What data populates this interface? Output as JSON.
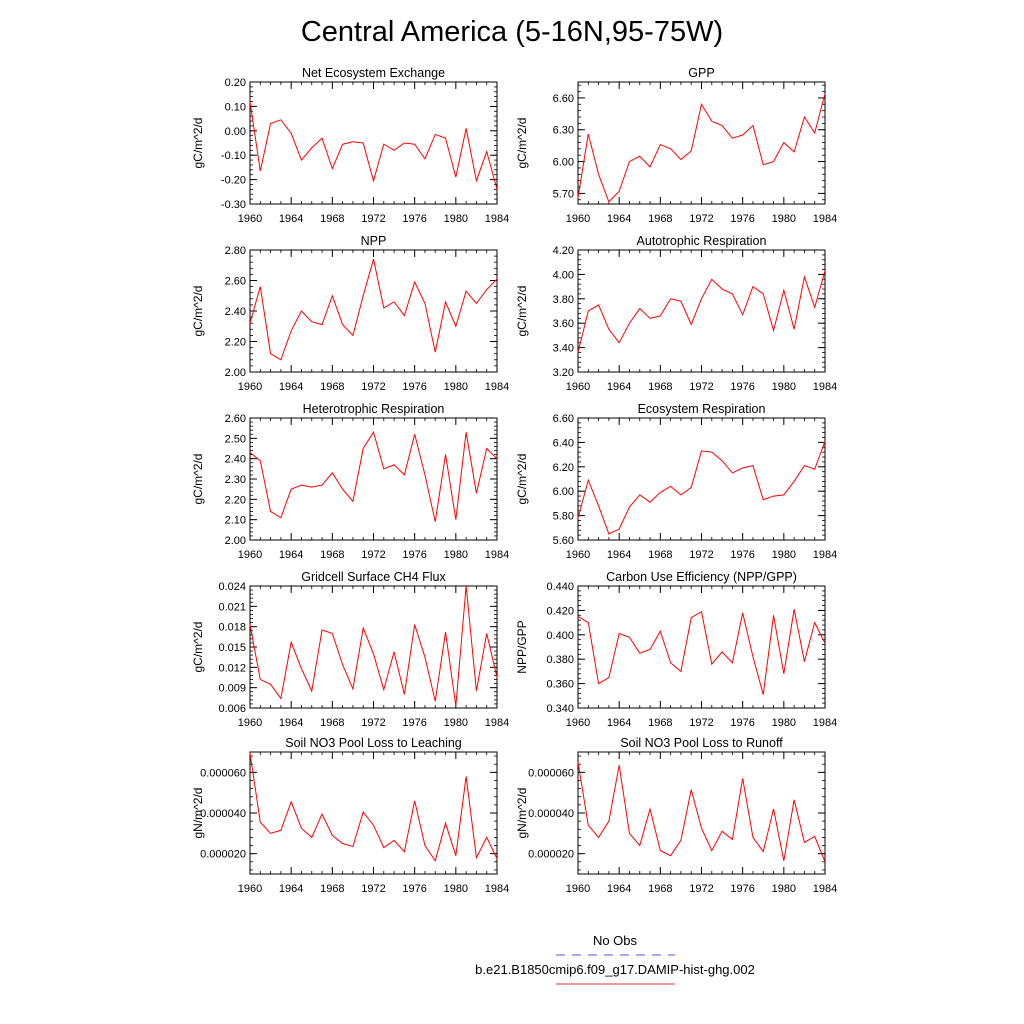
{
  "title": "Central America (5-16N,95-75W)",
  "legend": {
    "entries": [
      {
        "label": "No Obs",
        "color": "#5555dd",
        "style": "dashed"
      },
      {
        "label": "b.e21.B1850cmip6.f09_g17.DAMIP-hist-ghg.002",
        "color": "#dd3333",
        "style": "solid"
      }
    ]
  },
  "chart_data": [
    {
      "type": "line",
      "title": "Net Ecosystem Exchange",
      "ylabel": "gC/m^2/d",
      "xlim": [
        1960,
        1984
      ],
      "xticks": [
        "1960",
        "1964",
        "1968",
        "1972",
        "1976",
        "1980",
        "1984"
      ],
      "ylim": [
        -0.3,
        0.2
      ],
      "yticks": [
        "-0.30",
        "-0.20",
        "-0.10",
        "0.00",
        "0.10",
        "0.20"
      ],
      "series": [
        {
          "color": "#ff0000",
          "x": [
            1960,
            1961,
            1962,
            1963,
            1964,
            1965,
            1966,
            1967,
            1968,
            1969,
            1970,
            1971,
            1972,
            1973,
            1974,
            1975,
            1976,
            1977,
            1978,
            1979,
            1980,
            1981,
            1982,
            1983,
            1984
          ],
          "values": [
            0.12,
            -0.165,
            0.03,
            0.045,
            -0.01,
            -0.12,
            -0.07,
            -0.03,
            -0.155,
            -0.055,
            -0.045,
            -0.05,
            -0.205,
            -0.055,
            -0.08,
            -0.05,
            -0.055,
            -0.115,
            -0.015,
            -0.03,
            -0.19,
            0.01,
            -0.205,
            -0.085,
            -0.24
          ]
        }
      ]
    },
    {
      "type": "line",
      "title": "GPP",
      "ylabel": "gC/m^2/d",
      "xlim": [
        1960,
        1984
      ],
      "xticks": [
        "1960",
        "1964",
        "1968",
        "1972",
        "1976",
        "1980",
        "1984"
      ],
      "ylim": [
        5.6,
        6.75
      ],
      "yticks": [
        "5.70",
        "6.00",
        "6.30",
        "6.60"
      ],
      "series": [
        {
          "color": "#ff0000",
          "x": [
            1960,
            1961,
            1962,
            1963,
            1964,
            1965,
            1966,
            1967,
            1968,
            1969,
            1970,
            1971,
            1972,
            1973,
            1974,
            1975,
            1976,
            1977,
            1978,
            1979,
            1980,
            1981,
            1982,
            1983,
            1984
          ],
          "values": [
            5.66,
            6.26,
            5.88,
            5.62,
            5.72,
            6.0,
            6.05,
            5.95,
            6.16,
            6.12,
            6.02,
            6.1,
            6.54,
            6.38,
            6.34,
            6.22,
            6.25,
            6.34,
            5.97,
            6.0,
            6.18,
            6.09,
            6.42,
            6.27,
            6.64
          ]
        }
      ]
    },
    {
      "type": "line",
      "title": "NPP",
      "ylabel": "gC/m^2/d",
      "xlim": [
        1960,
        1984
      ],
      "xticks": [
        "1960",
        "1964",
        "1968",
        "1972",
        "1976",
        "1980",
        "1984"
      ],
      "ylim": [
        2.0,
        2.8
      ],
      "yticks": [
        "2.00",
        "2.20",
        "2.40",
        "2.60",
        "2.80"
      ],
      "series": [
        {
          "color": "#ff0000",
          "x": [
            1960,
            1961,
            1962,
            1963,
            1964,
            1965,
            1966,
            1967,
            1968,
            1969,
            1970,
            1971,
            1972,
            1973,
            1974,
            1975,
            1976,
            1977,
            1978,
            1979,
            1980,
            1981,
            1982,
            1983,
            1984
          ],
          "values": [
            2.32,
            2.56,
            2.12,
            2.08,
            2.27,
            2.4,
            2.33,
            2.31,
            2.5,
            2.31,
            2.24,
            2.5,
            2.74,
            2.42,
            2.46,
            2.37,
            2.59,
            2.45,
            2.13,
            2.46,
            2.3,
            2.53,
            2.45,
            2.54,
            2.61
          ]
        }
      ]
    },
    {
      "type": "line",
      "title": "Autotrophic Respiration",
      "ylabel": "gC/m^2/d",
      "xlim": [
        1960,
        1984
      ],
      "xticks": [
        "1960",
        "1964",
        "1968",
        "1972",
        "1976",
        "1980",
        "1984"
      ],
      "ylim": [
        3.2,
        4.2
      ],
      "yticks": [
        "3.20",
        "3.40",
        "3.60",
        "3.80",
        "4.00",
        "4.20"
      ],
      "series": [
        {
          "color": "#ff0000",
          "x": [
            1960,
            1961,
            1962,
            1963,
            1964,
            1965,
            1966,
            1967,
            1968,
            1969,
            1970,
            1971,
            1972,
            1973,
            1974,
            1975,
            1976,
            1977,
            1978,
            1979,
            1980,
            1981,
            1982,
            1983,
            1984
          ],
          "values": [
            3.36,
            3.7,
            3.75,
            3.55,
            3.44,
            3.6,
            3.72,
            3.64,
            3.66,
            3.8,
            3.78,
            3.59,
            3.8,
            3.96,
            3.88,
            3.84,
            3.67,
            3.9,
            3.84,
            3.54,
            3.87,
            3.55,
            3.98,
            3.73,
            4.03
          ]
        }
      ]
    },
    {
      "type": "line",
      "title": "Heterotrophic Respiration",
      "ylabel": "gC/m^2/d",
      "xlim": [
        1960,
        1984
      ],
      "xticks": [
        "1960",
        "1964",
        "1968",
        "1972",
        "1976",
        "1980",
        "1984"
      ],
      "ylim": [
        2.0,
        2.6
      ],
      "yticks": [
        "2.00",
        "2.10",
        "2.20",
        "2.30",
        "2.40",
        "2.50",
        "2.60"
      ],
      "series": [
        {
          "color": "#ff0000",
          "x": [
            1960,
            1961,
            1962,
            1963,
            1964,
            1965,
            1966,
            1967,
            1968,
            1969,
            1970,
            1971,
            1972,
            1973,
            1974,
            1975,
            1976,
            1977,
            1978,
            1979,
            1980,
            1981,
            1982,
            1983,
            1984
          ],
          "values": [
            2.43,
            2.39,
            2.14,
            2.11,
            2.25,
            2.27,
            2.26,
            2.27,
            2.33,
            2.25,
            2.19,
            2.45,
            2.53,
            2.35,
            2.37,
            2.32,
            2.52,
            2.32,
            2.09,
            2.42,
            2.1,
            2.53,
            2.23,
            2.45,
            2.4
          ]
        }
      ]
    },
    {
      "type": "line",
      "title": "Ecosystem Respiration",
      "ylabel": "gC/m^2/d",
      "xlim": [
        1960,
        1984
      ],
      "xticks": [
        "1960",
        "1964",
        "1968",
        "1972",
        "1976",
        "1980",
        "1984"
      ],
      "ylim": [
        5.6,
        6.6
      ],
      "yticks": [
        "5.60",
        "5.80",
        "6.00",
        "6.20",
        "6.40",
        "6.60"
      ],
      "series": [
        {
          "color": "#ff0000",
          "x": [
            1960,
            1961,
            1962,
            1963,
            1964,
            1965,
            1966,
            1967,
            1968,
            1969,
            1970,
            1971,
            1972,
            1973,
            1974,
            1975,
            1976,
            1977,
            1978,
            1979,
            1980,
            1981,
            1982,
            1983,
            1984
          ],
          "values": [
            5.78,
            6.09,
            5.88,
            5.65,
            5.69,
            5.87,
            5.97,
            5.91,
            5.99,
            6.04,
            5.97,
            6.03,
            6.33,
            6.32,
            6.25,
            6.15,
            6.19,
            6.21,
            5.93,
            5.96,
            5.97,
            6.08,
            6.21,
            6.18,
            6.41
          ]
        }
      ]
    },
    {
      "type": "line",
      "title": "Gridcell Surface CH4 Flux",
      "ylabel": "gC/m^2/d",
      "xlim": [
        1960,
        1984
      ],
      "xticks": [
        "1960",
        "1964",
        "1968",
        "1972",
        "1976",
        "1980",
        "1984"
      ],
      "ylim": [
        0.006,
        0.024
      ],
      "yticks": [
        "0.006",
        "0.009",
        "0.012",
        "0.015",
        "0.018",
        "0.021",
        "0.024"
      ],
      "series": [
        {
          "color": "#ff0000",
          "x": [
            1960,
            1961,
            1962,
            1963,
            1964,
            1965,
            1966,
            1967,
            1968,
            1969,
            1970,
            1971,
            1972,
            1973,
            1974,
            1975,
            1976,
            1977,
            1978,
            1979,
            1980,
            1981,
            1982,
            1983,
            1984
          ],
          "values": [
            0.0183,
            0.0102,
            0.0095,
            0.0074,
            0.0157,
            0.0118,
            0.0085,
            0.0175,
            0.017,
            0.0124,
            0.0088,
            0.0178,
            0.014,
            0.0087,
            0.0143,
            0.008,
            0.0183,
            0.0135,
            0.007,
            0.0172,
            0.0063,
            0.024,
            0.0085,
            0.017,
            0.0105
          ]
        }
      ]
    },
    {
      "type": "line",
      "title": "Carbon Use Efficiency (NPP/GPP)",
      "ylabel": "NPP/GPP",
      "xlim": [
        1960,
        1984
      ],
      "xticks": [
        "1960",
        "1964",
        "1968",
        "1972",
        "1976",
        "1980",
        "1984"
      ],
      "ylim": [
        0.34,
        0.44
      ],
      "yticks": [
        "0.340",
        "0.360",
        "0.380",
        "0.400",
        "0.420",
        "0.440"
      ],
      "series": [
        {
          "color": "#ff0000",
          "x": [
            1960,
            1961,
            1962,
            1963,
            1964,
            1965,
            1966,
            1967,
            1968,
            1969,
            1970,
            1971,
            1972,
            1973,
            1974,
            1975,
            1976,
            1977,
            1978,
            1979,
            1980,
            1981,
            1982,
            1983,
            1984
          ],
          "values": [
            0.415,
            0.41,
            0.36,
            0.365,
            0.401,
            0.398,
            0.385,
            0.388,
            0.403,
            0.377,
            0.37,
            0.414,
            0.419,
            0.376,
            0.386,
            0.377,
            0.418,
            0.382,
            0.351,
            0.416,
            0.368,
            0.421,
            0.378,
            0.41,
            0.393
          ]
        }
      ]
    },
    {
      "type": "line",
      "title": "Soil NO3 Pool Loss to Leaching",
      "ylabel": "gN/m^2/d",
      "xlim": [
        1960,
        1984
      ],
      "xticks": [
        "1960",
        "1964",
        "1968",
        "1972",
        "1976",
        "1980",
        "1984"
      ],
      "ylim": [
        1e-05,
        7e-05
      ],
      "yticks": [
        "0.000020",
        "0.000040",
        "0.000060"
      ],
      "series": [
        {
          "color": "#ff0000",
          "x": [
            1960,
            1961,
            1962,
            1963,
            1964,
            1965,
            1966,
            1967,
            1968,
            1969,
            1970,
            1971,
            1972,
            1973,
            1974,
            1975,
            1976,
            1977,
            1978,
            1979,
            1980,
            1981,
            1982,
            1983,
            1984
          ],
          "values": [
            6.95e-05,
            3.55e-05,
            3e-05,
            3.15e-05,
            4.55e-05,
            3.25e-05,
            2.8e-05,
            3.95e-05,
            2.9e-05,
            2.5e-05,
            2.35e-05,
            4.05e-05,
            3.4e-05,
            2.3e-05,
            2.65e-05,
            2.1e-05,
            4.6e-05,
            2.4e-05,
            1.65e-05,
            3.5e-05,
            1.9e-05,
            5.8e-05,
            1.8e-05,
            2.8e-05,
            1.75e-05
          ]
        }
      ]
    },
    {
      "type": "line",
      "title": "Soil NO3 Pool Loss to Runoff",
      "ylabel": "gN/m^2/d",
      "xlim": [
        1960,
        1984
      ],
      "xticks": [
        "1960",
        "1964",
        "1968",
        "1972",
        "1976",
        "1980",
        "1984"
      ],
      "ylim": [
        1e-05,
        7e-05
      ],
      "yticks": [
        "0.000020",
        "0.000040",
        "0.000060"
      ],
      "series": [
        {
          "color": "#ff0000",
          "x": [
            1960,
            1961,
            1962,
            1963,
            1964,
            1965,
            1966,
            1967,
            1968,
            1969,
            1970,
            1971,
            1972,
            1973,
            1974,
            1975,
            1976,
            1977,
            1978,
            1979,
            1980,
            1981,
            1982,
            1983,
            1984
          ],
          "values": [
            6.5e-05,
            3.4e-05,
            2.8e-05,
            3.6e-05,
            6.35e-05,
            3e-05,
            2.4e-05,
            4.2e-05,
            2.15e-05,
            1.9e-05,
            2.65e-05,
            5.15e-05,
            3.25e-05,
            2.15e-05,
            3.1e-05,
            2.7e-05,
            5.7e-05,
            2.8e-05,
            2.1e-05,
            4.2e-05,
            1.65e-05,
            4.65e-05,
            2.55e-05,
            2.85e-05,
            1.6e-05
          ]
        }
      ]
    }
  ]
}
